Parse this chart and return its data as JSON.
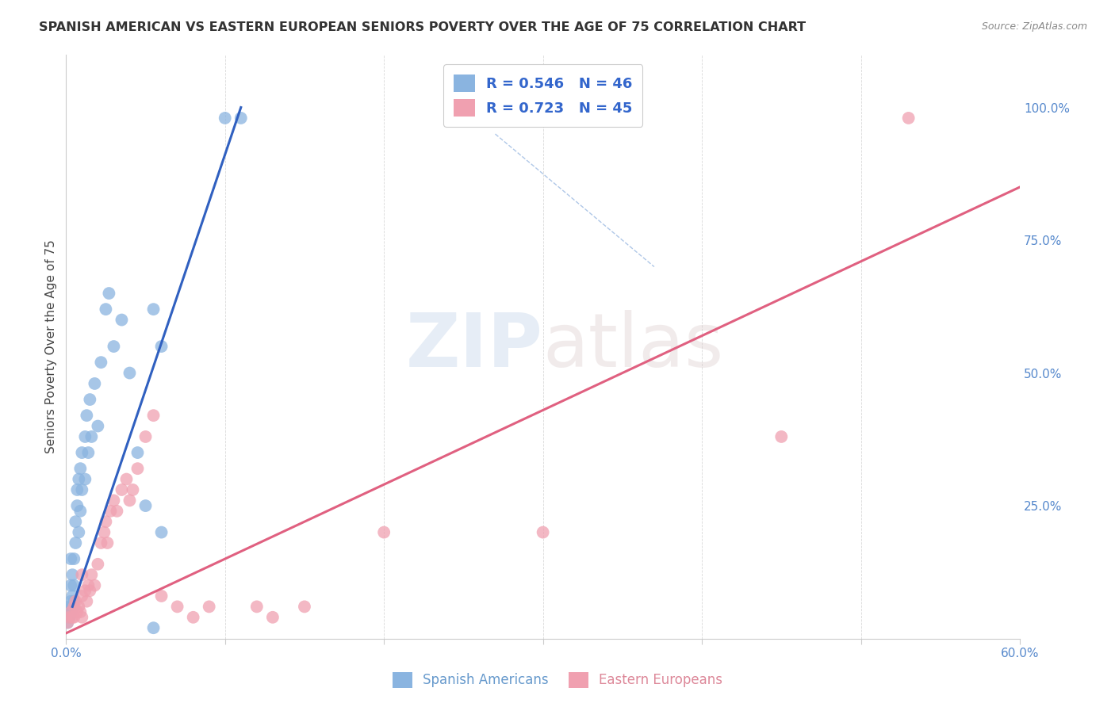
{
  "title": "SPANISH AMERICAN VS EASTERN EUROPEAN SENIORS POVERTY OVER THE AGE OF 75 CORRELATION CHART",
  "source": "Source: ZipAtlas.com",
  "ylabel": "Seniors Poverty Over the Age of 75",
  "xlim": [
    0.0,
    0.6
  ],
  "ylim": [
    0.0,
    1.1
  ],
  "blue_R": 0.546,
  "blue_N": 46,
  "pink_R": 0.723,
  "pink_N": 45,
  "blue_color": "#8ab4e0",
  "pink_color": "#f0a0b0",
  "blue_line_color": "#3060c0",
  "pink_line_color": "#e06080",
  "watermark_zip": "ZIP",
  "watermark_atlas": "atlas",
  "legend_blue_label": "Spanish Americans",
  "legend_pink_label": "Eastern Europeans",
  "blue_points": [
    [
      0.001,
      0.03
    ],
    [
      0.001,
      0.05
    ],
    [
      0.002,
      0.06
    ],
    [
      0.002,
      0.04
    ],
    [
      0.003,
      0.07
    ],
    [
      0.003,
      0.05
    ],
    [
      0.003,
      0.1
    ],
    [
      0.004,
      0.08
    ],
    [
      0.004,
      0.06
    ],
    [
      0.004,
      0.12
    ],
    [
      0.005,
      0.1
    ],
    [
      0.005,
      0.07
    ],
    [
      0.005,
      0.15
    ],
    [
      0.006,
      0.18
    ],
    [
      0.006,
      0.22
    ],
    [
      0.007,
      0.25
    ],
    [
      0.007,
      0.28
    ],
    [
      0.008,
      0.3
    ],
    [
      0.008,
      0.2
    ],
    [
      0.009,
      0.32
    ],
    [
      0.009,
      0.24
    ],
    [
      0.01,
      0.35
    ],
    [
      0.01,
      0.28
    ],
    [
      0.012,
      0.38
    ],
    [
      0.012,
      0.3
    ],
    [
      0.013,
      0.42
    ],
    [
      0.014,
      0.35
    ],
    [
      0.015,
      0.45
    ],
    [
      0.016,
      0.38
    ],
    [
      0.018,
      0.48
    ],
    [
      0.02,
      0.4
    ],
    [
      0.022,
      0.52
    ],
    [
      0.025,
      0.62
    ],
    [
      0.027,
      0.65
    ],
    [
      0.03,
      0.55
    ],
    [
      0.035,
      0.6
    ],
    [
      0.04,
      0.5
    ],
    [
      0.045,
      0.35
    ],
    [
      0.05,
      0.25
    ],
    [
      0.055,
      0.62
    ],
    [
      0.06,
      0.2
    ],
    [
      0.1,
      0.98
    ],
    [
      0.11,
      0.98
    ],
    [
      0.055,
      0.02
    ],
    [
      0.06,
      0.55
    ],
    [
      0.003,
      0.15
    ]
  ],
  "pink_points": [
    [
      0.001,
      0.03
    ],
    [
      0.002,
      0.04
    ],
    [
      0.003,
      0.05
    ],
    [
      0.004,
      0.04
    ],
    [
      0.005,
      0.06
    ],
    [
      0.005,
      0.04
    ],
    [
      0.006,
      0.07
    ],
    [
      0.007,
      0.05
    ],
    [
      0.008,
      0.06
    ],
    [
      0.009,
      0.05
    ],
    [
      0.01,
      0.08
    ],
    [
      0.01,
      0.04
    ],
    [
      0.012,
      0.09
    ],
    [
      0.013,
      0.07
    ],
    [
      0.014,
      0.1
    ],
    [
      0.015,
      0.09
    ],
    [
      0.016,
      0.12
    ],
    [
      0.018,
      0.1
    ],
    [
      0.02,
      0.14
    ],
    [
      0.022,
      0.18
    ],
    [
      0.024,
      0.2
    ],
    [
      0.025,
      0.22
    ],
    [
      0.026,
      0.18
    ],
    [
      0.028,
      0.24
    ],
    [
      0.03,
      0.26
    ],
    [
      0.032,
      0.24
    ],
    [
      0.035,
      0.28
    ],
    [
      0.038,
      0.3
    ],
    [
      0.04,
      0.26
    ],
    [
      0.042,
      0.28
    ],
    [
      0.045,
      0.32
    ],
    [
      0.05,
      0.38
    ],
    [
      0.055,
      0.42
    ],
    [
      0.06,
      0.08
    ],
    [
      0.07,
      0.06
    ],
    [
      0.08,
      0.04
    ],
    [
      0.09,
      0.06
    ],
    [
      0.12,
      0.06
    ],
    [
      0.13,
      0.04
    ],
    [
      0.15,
      0.06
    ],
    [
      0.2,
      0.2
    ],
    [
      0.3,
      0.2
    ],
    [
      0.45,
      0.38
    ],
    [
      0.53,
      0.98
    ],
    [
      0.01,
      0.12
    ]
  ],
  "blue_line_x": [
    0.004,
    0.11
  ],
  "blue_line_y": [
    0.06,
    1.0
  ],
  "pink_line_x": [
    0.0,
    0.6
  ],
  "pink_line_y": [
    0.01,
    0.85
  ],
  "dashed_line_x": [
    0.27,
    0.37
  ],
  "dashed_line_y": [
    0.95,
    0.7
  ],
  "grid_color": "#d0d0d0",
  "bg_color": "#ffffff"
}
